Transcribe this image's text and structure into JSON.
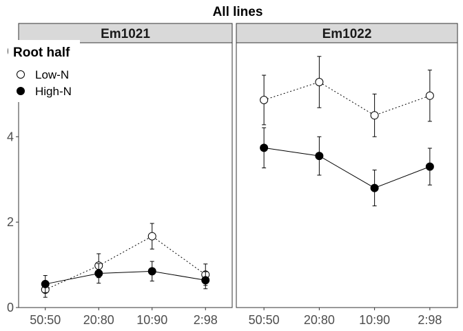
{
  "chart_data": {
    "type": "line",
    "title": "All lines",
    "xlabel": "",
    "ylabel": "",
    "categories": [
      "50:50",
      "20:80",
      "10:90",
      "2:98"
    ],
    "ylim": [
      0,
      6.2
    ],
    "y_ticks": [
      0,
      2,
      4,
      6
    ],
    "y_tick_labels": [
      "0",
      "2",
      "4",
      "6"
    ],
    "grid": false,
    "legend": {
      "title": "Root half",
      "placement": "top-left",
      "entries": [
        {
          "label": "Low-N",
          "marker": "open-circle",
          "line": "dotted"
        },
        {
          "label": "High-N",
          "marker": "filled-circle",
          "line": "solid"
        }
      ]
    },
    "panels": [
      {
        "label": "Em1021",
        "series": [
          {
            "name": "Low-N",
            "values": [
              0.42,
              0.98,
              1.67,
              0.77
            ],
            "err": [
              0.18,
              0.28,
              0.3,
              0.25
            ]
          },
          {
            "name": "High-N",
            "values": [
              0.55,
              0.8,
              0.85,
              0.64
            ],
            "err": [
              0.2,
              0.23,
              0.23,
              0.2
            ]
          }
        ]
      },
      {
        "label": "Em1022",
        "series": [
          {
            "name": "Low-N",
            "values": [
              4.86,
              5.28,
              4.5,
              4.96
            ],
            "err": [
              0.58,
              0.6,
              0.5,
              0.6
            ]
          },
          {
            "name": "High-N",
            "values": [
              3.74,
              3.55,
              2.8,
              3.3
            ],
            "err": [
              0.47,
              0.45,
              0.42,
              0.43
            ]
          }
        ]
      }
    ],
    "colors": {
      "line": "#000000",
      "strip_fill": "#d9d9d9",
      "panel_border": "#333333",
      "axis_text": "#4d4d4d"
    }
  }
}
